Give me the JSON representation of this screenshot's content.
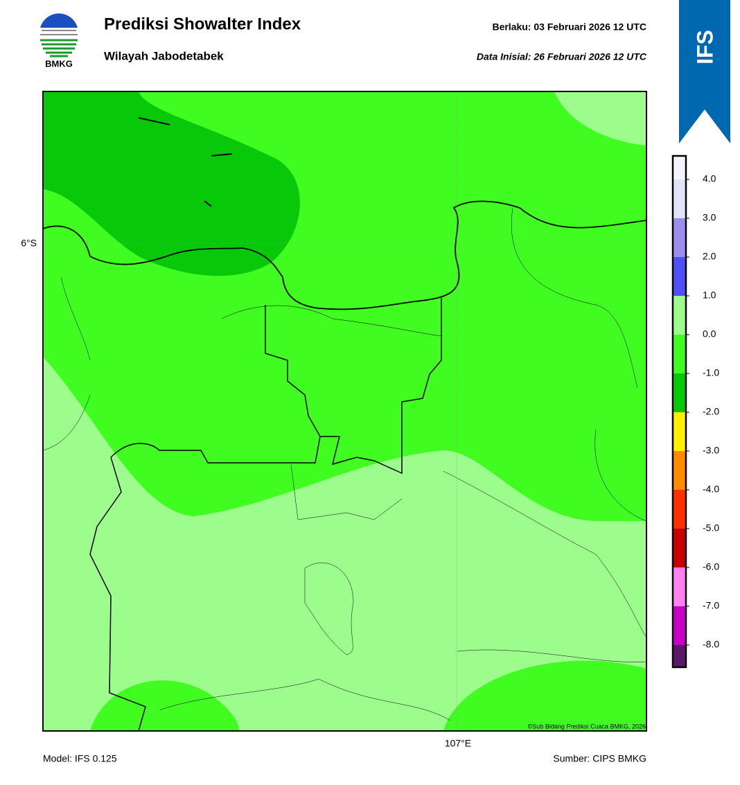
{
  "header": {
    "title": "Prediksi Showalter Index",
    "subtitle": "Wilayah Jabodetabek",
    "valid": "Berlaku:  03 Februari 2026 12 UTC",
    "init": "Data Inisial:  26 Februari 2026 12 UTC",
    "logo": "BMKG",
    "banner": "IFS"
  },
  "map": {
    "lat_label": "6°S",
    "lon_label": "107°E",
    "copyright": "©Sub Bidang Prediksi Cuaca BMKG, 2026"
  },
  "colorbar": {
    "labels": [
      "4.0",
      "3.0",
      "2.0",
      "1.0",
      "0.0",
      "-1.0",
      "-2.0",
      "-3.0",
      "-4.0",
      "-5.0",
      "-6.0",
      "-7.0",
      "-8.0"
    ],
    "colors": [
      "#f4f4ff",
      "#e2e2f8",
      "#9c8cf0",
      "#5050f8",
      "#9cfd8c",
      "#40fc20",
      "#08c80a",
      "#ffee00",
      "#ff8c00",
      "#ff3000",
      "#c80000",
      "#ff80f0",
      "#c800c8",
      "#5a1a6a"
    ]
  },
  "footer": {
    "model": "Model: IFS 0.125",
    "source": "Sumber: CIPS BMKG"
  }
}
